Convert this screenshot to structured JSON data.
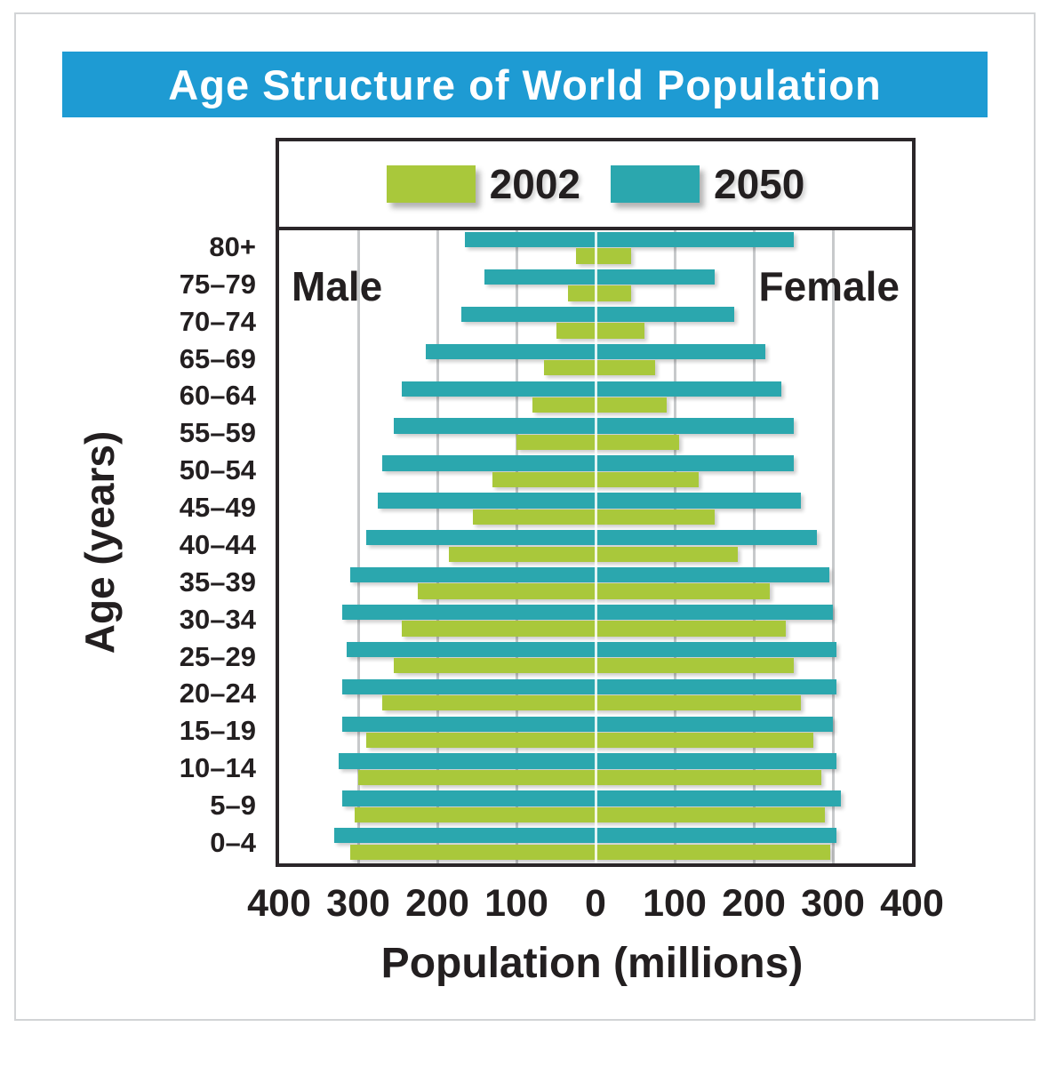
{
  "header": {
    "title": "Age Structure of World Population",
    "color": "#1e9bd3"
  },
  "legend": [
    {
      "label": "2002",
      "color": "#a9c83b"
    },
    {
      "label": "2050",
      "color": "#2ba7ae"
    }
  ],
  "side_labels": {
    "male": "Male",
    "female": "Female"
  },
  "axes": {
    "x_title": "Population (millions)",
    "y_title": "Age (years)",
    "x_ticks": [
      "400",
      "300",
      "200",
      "100",
      "0",
      "100",
      "200",
      "300",
      "400"
    ]
  },
  "chart_data": {
    "type": "bar",
    "subtype": "population-pyramid",
    "title": "Age Structure of World Population",
    "xlabel": "Population (millions)",
    "ylabel": "Age (years)",
    "xlim_each_side": [
      0,
      400
    ],
    "grid": true,
    "legend_position": "top",
    "colors": {
      "2002": "#a9c83b",
      "2050": "#2ba7ae"
    },
    "categories_top_to_bottom": [
      "80+",
      "75–79",
      "70–74",
      "65–69",
      "60–64",
      "55–59",
      "50–54",
      "45–49",
      "40–44",
      "35–39",
      "30–34",
      "25–29",
      "20–24",
      "15–19",
      "10–14",
      "5–9",
      "0–4"
    ],
    "series": [
      {
        "name": "Male 2002",
        "side": "left",
        "year": "2002",
        "values": [
          25,
          35,
          50,
          65,
          80,
          100,
          130,
          155,
          185,
          225,
          245,
          255,
          270,
          290,
          300,
          305,
          310
        ]
      },
      {
        "name": "Female 2002",
        "side": "right",
        "year": "2002",
        "values": [
          45,
          45,
          62,
          75,
          90,
          105,
          130,
          150,
          180,
          220,
          240,
          250,
          260,
          275,
          285,
          290,
          297
        ]
      },
      {
        "name": "Male 2050",
        "side": "left",
        "year": "2050",
        "values": [
          165,
          140,
          170,
          215,
          245,
          255,
          270,
          275,
          290,
          310,
          320,
          315,
          320,
          320,
          325,
          320,
          330
        ]
      },
      {
        "name": "Female 2050",
        "side": "right",
        "year": "2050",
        "values": [
          250,
          150,
          175,
          215,
          235,
          250,
          250,
          260,
          280,
          295,
          300,
          305,
          305,
          300,
          305,
          310,
          305
        ]
      }
    ]
  }
}
